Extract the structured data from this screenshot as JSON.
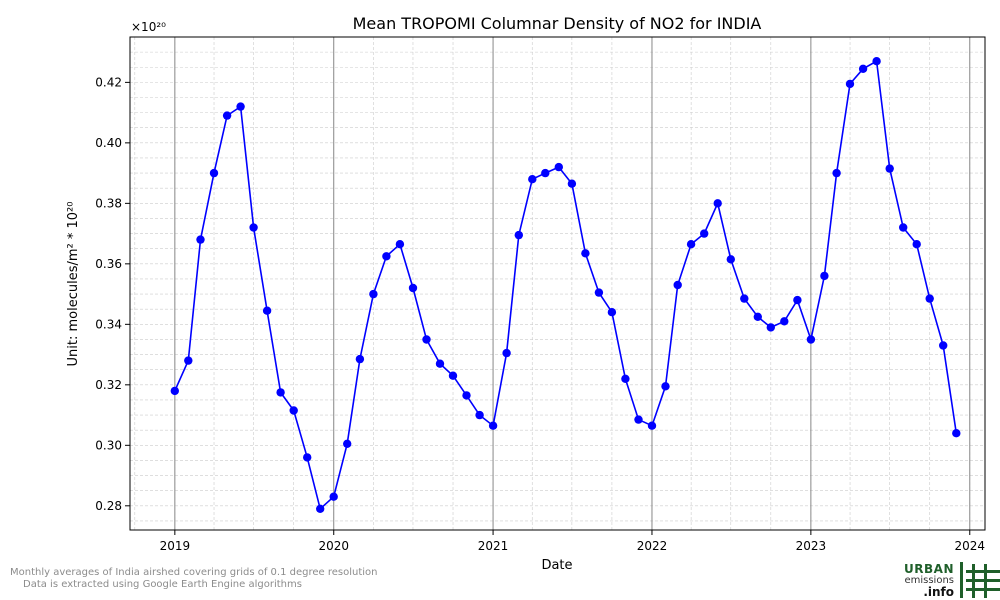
{
  "chart_data": {
    "type": "line",
    "title": "Mean TROPOMI Columnar Density of NO2 for INDIA",
    "xlabel": "Date",
    "ylabel": "Unit: molecules/m² * 10²⁰",
    "y_offset_label": "×10²⁰",
    "xlim": [
      "2018-09-20",
      "2024-02-05"
    ],
    "ylim": [
      0.272,
      0.435
    ],
    "x_ticks": [
      "2019",
      "2020",
      "2021",
      "2022",
      "2023",
      "2024"
    ],
    "y_ticks": [
      "0.28",
      "0.30",
      "0.32",
      "0.34",
      "0.36",
      "0.38",
      "0.40",
      "0.42"
    ],
    "y_tick_values": [
      0.28,
      0.3,
      0.32,
      0.34,
      0.36,
      0.38,
      0.4,
      0.42
    ],
    "grid": true,
    "series": [
      {
        "color": "#0000ff",
        "x": [
          "2019-01",
          "2019-02",
          "2019-03",
          "2019-04",
          "2019-05",
          "2019-06",
          "2019-07",
          "2019-08",
          "2019-09",
          "2019-10",
          "2019-11",
          "2019-12",
          "2020-01",
          "2020-02",
          "2020-03",
          "2020-04",
          "2020-05",
          "2020-06",
          "2020-07",
          "2020-08",
          "2020-09",
          "2020-10",
          "2020-11",
          "2020-12",
          "2021-01",
          "2021-02",
          "2021-03",
          "2021-04",
          "2021-05",
          "2021-06",
          "2021-07",
          "2021-08",
          "2021-09",
          "2021-10",
          "2021-11",
          "2021-12",
          "2022-01",
          "2022-02",
          "2022-03",
          "2022-04",
          "2022-05",
          "2022-06",
          "2022-07",
          "2022-08",
          "2022-09",
          "2022-10",
          "2022-11",
          "2022-12",
          "2023-01",
          "2023-02",
          "2023-03",
          "2023-04",
          "2023-05",
          "2023-06",
          "2023-07",
          "2023-08",
          "2023-09",
          "2023-10",
          "2023-11",
          "2023-12"
        ],
        "values": [
          0.318,
          0.328,
          0.368,
          0.39,
          0.409,
          0.412,
          0.372,
          0.3445,
          0.3175,
          0.3115,
          0.296,
          0.279,
          0.283,
          0.3005,
          0.3285,
          0.35,
          0.3625,
          0.3665,
          0.352,
          0.335,
          0.327,
          0.323,
          0.3165,
          0.31,
          0.3065,
          0.3305,
          0.3695,
          0.388,
          0.39,
          0.392,
          0.3865,
          0.3635,
          0.3505,
          0.344,
          0.322,
          0.3085,
          0.3065,
          0.3195,
          0.353,
          0.3665,
          0.37,
          0.38,
          0.3615,
          0.3485,
          0.3425,
          0.339,
          0.341,
          0.348,
          0.335,
          0.356,
          0.39,
          0.4195,
          0.4245,
          0.427,
          0.3915,
          0.372,
          0.3665,
          0.3485,
          0.333,
          0.304
        ]
      }
    ]
  },
  "footnote": {
    "line1": "Monthly averages of India airshed covering grids of 0.1 degree resolution",
    "line2": "Data is extracted using Google Earth Engine algorithms"
  },
  "logo": {
    "line1": "URBAN",
    "line2": "emissions",
    "line3": ".info",
    "color": "#1f5f2a"
  }
}
